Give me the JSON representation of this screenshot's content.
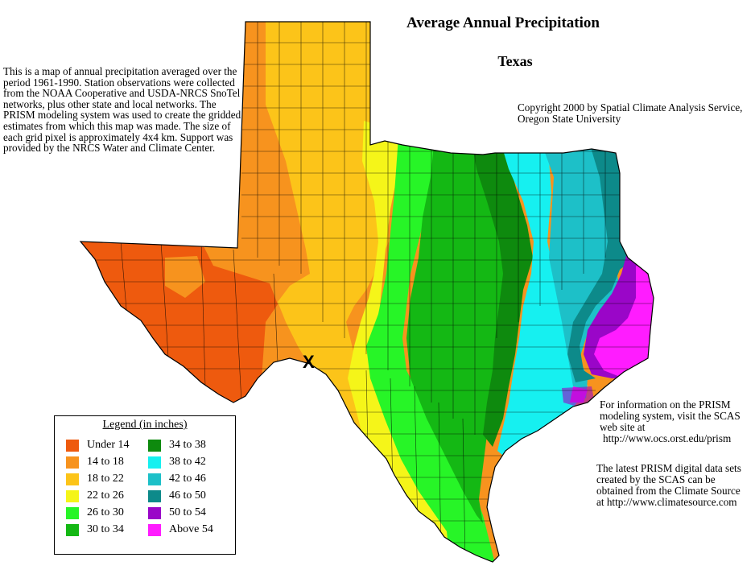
{
  "title": "Average Annual Precipitation",
  "subtitle": "Texas",
  "description": "This is a map of annual precipitation averaged over the period 1961-1990. Station observations were collected from the NOAA Cooperative and USDA-NRCS SnoTel networks, plus other state and local networks. The PRISM modeling system was used to create the gridded estimates from which this map was made. The size of each grid pixel is approximately 4x4 km. Support was provided by the NRCS Water and Climate Center.",
  "copyright": "Copyright 2000 by Spatial Climate Analysis Service, Oregon State University",
  "info_prism": {
    "text": "For information on the PRISM modeling system, visit the SCAS web site at",
    "url": "http://www.ocs.orst.edu/prism"
  },
  "info_climatesource": "The latest PRISM digital data sets created by the SCAS can be obtained from the Climate Source at http://www.climatesource.com",
  "marker": "X",
  "legend": {
    "title": "Legend (in inches)",
    "column1": [
      {
        "label": "Under 14",
        "color": "#ee5a0e"
      },
      {
        "label": "14 to 18",
        "color": "#f7931e"
      },
      {
        "label": "18 to 22",
        "color": "#fcc419"
      },
      {
        "label": "22 to 26",
        "color": "#f5f519"
      },
      {
        "label": "26 to 30",
        "color": "#27f527"
      },
      {
        "label": "30 to 34",
        "color": "#14b814"
      }
    ],
    "column2": [
      {
        "label": "34 to 38",
        "color": "#0e8a0e"
      },
      {
        "label": "38 to 42",
        "color": "#16f0f0"
      },
      {
        "label": "42 to 46",
        "color": "#1dc0c8"
      },
      {
        "label": "46 to 50",
        "color": "#0d8a8a"
      },
      {
        "label": "50 to 54",
        "color": "#9a06c8"
      },
      {
        "label": "Above 54",
        "color": "#ff1cff"
      }
    ]
  }
}
